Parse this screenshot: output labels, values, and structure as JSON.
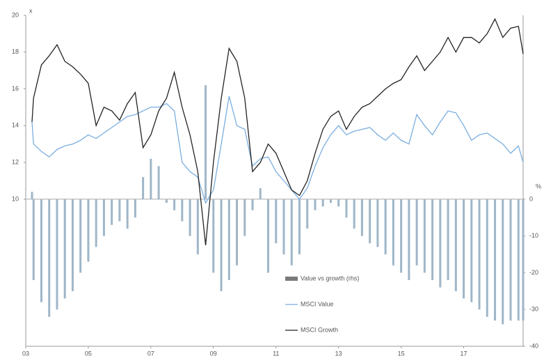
{
  "chart_data": {
    "type": "combo",
    "ylabel": "x",
    "y2label": "%",
    "x": [
      2003.2,
      2003.25,
      2003.5,
      2003.75,
      2004,
      2004.25,
      2004.5,
      2004.75,
      2005,
      2005.25,
      2005.5,
      2005.75,
      2006,
      2006.25,
      2006.5,
      2006.75,
      2007,
      2007.25,
      2007.5,
      2007.75,
      2008,
      2008.25,
      2008.5,
      2008.75,
      2009,
      2009.25,
      2009.5,
      2009.75,
      2010,
      2010.25,
      2010.5,
      2010.75,
      2011,
      2011.25,
      2011.5,
      2011.75,
      2012,
      2012.25,
      2012.5,
      2012.75,
      2013,
      2013.25,
      2013.5,
      2013.75,
      2014,
      2014.25,
      2014.5,
      2014.75,
      2015,
      2015.25,
      2015.5,
      2015.75,
      2016,
      2016.25,
      2016.5,
      2016.75,
      2017,
      2017.25,
      2017.5,
      2017.75,
      2018,
      2018.25,
      2018.5,
      2018.75,
      2018.9
    ],
    "series": [
      {
        "name": "Value vs growth (rhs)",
        "type": "bar",
        "axis": "y2",
        "color": "#9fb6c8",
        "legend_color": "#7a7a7a",
        "values": [
          2,
          -22,
          -28,
          -32,
          -30,
          -27,
          -25,
          -20,
          -17,
          -13,
          -10,
          -7,
          -6,
          -8,
          -5,
          6,
          11,
          9,
          -1,
          -3,
          -6,
          -10,
          -15,
          31,
          -20,
          -25,
          -22,
          -18,
          -10,
          -3,
          3,
          -20,
          -12,
          -15,
          -18,
          -15,
          -8,
          -3,
          -2,
          -1,
          -2,
          -5,
          -8,
          -10,
          -12,
          -13,
          -15,
          -18,
          -20,
          -22,
          -18,
          -20,
          -22,
          -24,
          -22,
          -25,
          -27,
          -28,
          -30,
          -32,
          -33,
          -34,
          -33,
          -33,
          -33
        ]
      },
      {
        "name": "MSCI Value",
        "type": "line",
        "color": "#7aaee0",
        "values": [
          14.2,
          13.0,
          12.6,
          12.3,
          12.7,
          12.9,
          13.0,
          13.2,
          13.5,
          13.3,
          13.6,
          13.9,
          14.2,
          14.5,
          14.6,
          14.8,
          15.0,
          15.0,
          15.2,
          14.8,
          12.0,
          11.5,
          11.2,
          9.8,
          10.5,
          13.0,
          15.6,
          14.0,
          13.8,
          11.8,
          12.2,
          12.3,
          11.5,
          11.0,
          10.5,
          10.0,
          10.6,
          11.8,
          12.8,
          13.5,
          14.0,
          13.5,
          13.7,
          13.8,
          13.9,
          13.5,
          13.2,
          13.6,
          13.2,
          13.0,
          14.6,
          14.0,
          13.5,
          14.2,
          14.8,
          14.7,
          14.0,
          13.2,
          13.5,
          13.6,
          13.3,
          13.0,
          12.5,
          12.9,
          12.0
        ]
      },
      {
        "name": "MSCI Growth",
        "type": "line",
        "color": "#222222",
        "values": [
          14.2,
          15.5,
          17.3,
          17.8,
          18.4,
          17.5,
          17.2,
          16.8,
          16.3,
          14.0,
          15.0,
          14.8,
          14.3,
          15.2,
          15.8,
          12.8,
          13.5,
          14.8,
          15.5,
          16.9,
          15.0,
          13.5,
          11.5,
          7.5,
          12.0,
          15.5,
          18.2,
          17.5,
          15.5,
          11.5,
          12.0,
          13.0,
          12.5,
          11.5,
          10.5,
          10.2,
          11.0,
          12.5,
          13.8,
          14.5,
          14.8,
          13.8,
          14.5,
          15.0,
          15.2,
          15.6,
          16.0,
          16.3,
          16.5,
          17.2,
          17.8,
          17.0,
          17.5,
          18.0,
          18.8,
          18.0,
          18.8,
          18.8,
          18.5,
          19.0,
          19.8,
          18.8,
          19.3,
          19.4,
          17.9
        ]
      }
    ],
    "xlim": [
      2003,
      2018.9
    ],
    "xticks": [
      {
        "value": 2003,
        "label": "03"
      },
      {
        "value": 2005,
        "label": "05"
      },
      {
        "value": 2007,
        "label": "07"
      },
      {
        "value": 2009,
        "label": "09"
      },
      {
        "value": 2011,
        "label": "11"
      },
      {
        "value": 2013,
        "label": "13"
      },
      {
        "value": 2015,
        "label": "15"
      },
      {
        "value": 2017,
        "label": "17"
      }
    ],
    "ylim": [
      2,
      20
    ],
    "yticks": [
      10,
      12,
      14,
      16,
      18,
      20
    ],
    "y2lim": [
      -40,
      50
    ],
    "y2ticks": [
      0,
      -10,
      -20,
      -30,
      -40
    ],
    "legend": "inside-center"
  }
}
